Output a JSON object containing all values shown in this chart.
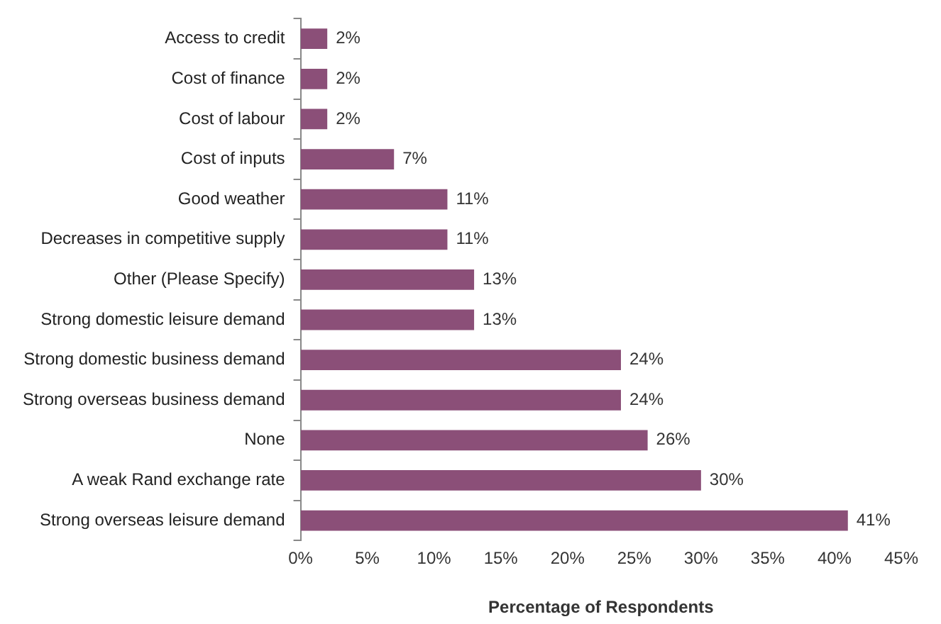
{
  "chart_data": {
    "type": "bar",
    "orientation": "horizontal",
    "xlabel": "Percentage of Respondents",
    "categories": [
      "Access to credit",
      "Cost of finance",
      "Cost of labour",
      "Cost of inputs",
      "Good weather",
      "Decreases in competitive supply",
      "Other (Please Specify)",
      "Strong domestic leisure demand",
      "Strong domestic business demand",
      "Strong overseas business demand",
      "None",
      "A weak Rand exchange rate",
      "Strong overseas leisure demand"
    ],
    "values": [
      2,
      2,
      2,
      7,
      11,
      11,
      13,
      13,
      24,
      24,
      26,
      30,
      41
    ],
    "value_labels": [
      "2%",
      "2%",
      "2%",
      "7%",
      "11%",
      "11%",
      "13%",
      "13%",
      "24%",
      "24%",
      "26%",
      "30%",
      "41%"
    ],
    "color": "#8b4f78",
    "xlim": [
      0,
      45
    ],
    "xticks": [
      {
        "value": 0,
        "label": "0%"
      },
      {
        "value": 5,
        "label": "5%"
      },
      {
        "value": 10,
        "label": "10%"
      },
      {
        "value": 15,
        "label": "15%"
      },
      {
        "value": 20,
        "label": "20%"
      },
      {
        "value": 25,
        "label": "25%"
      },
      {
        "value": 30,
        "label": "30%"
      },
      {
        "value": 35,
        "label": "35%"
      },
      {
        "value": 40,
        "label": "40%"
      },
      {
        "value": 45,
        "label": "45%"
      }
    ],
    "grid": false,
    "legend": false
  }
}
